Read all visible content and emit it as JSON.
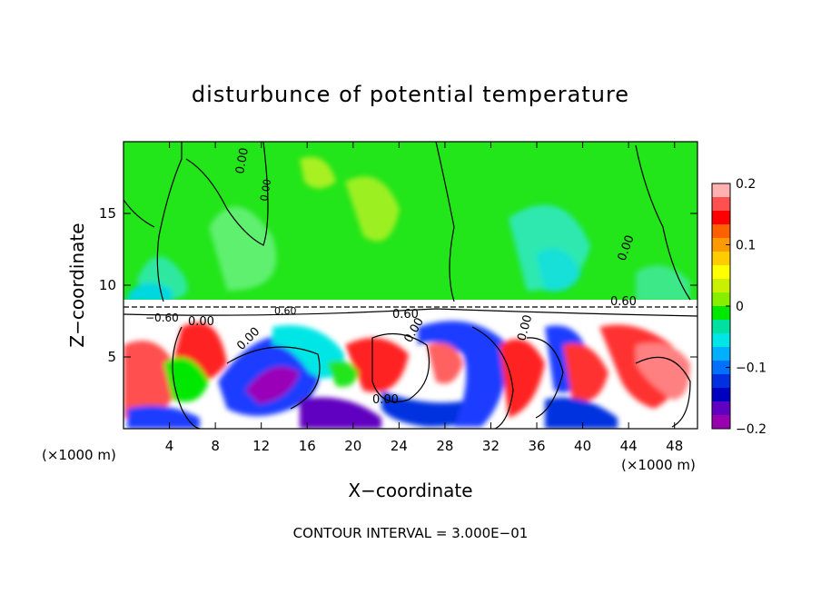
{
  "chart_data": {
    "type": "heatmap",
    "title": "disturbunce of potential temperature",
    "xlabel": "X−coordinate",
    "ylabel": "Z−coordinate",
    "x_unit_label": "(×1000 m)",
    "x_unit_label_right": "(×1000 m)",
    "xlim": [
      0,
      50
    ],
    "ylim": [
      0,
      20
    ],
    "xticks": [
      4,
      8,
      12,
      16,
      20,
      24,
      28,
      32,
      36,
      40,
      44,
      48
    ],
    "yticks": [
      5,
      10,
      15
    ],
    "colorbar": {
      "range": [
        -0.2,
        0.2
      ],
      "ticks": [
        "0.2",
        "0.1",
        "0",
        "−0.1",
        "−0.2"
      ],
      "colors_top_to_bottom": [
        "#ffb0b0",
        "#ff5050",
        "#ff0000",
        "#ff6000",
        "#ff9900",
        "#ffcc00",
        "#ffff00",
        "#c8f000",
        "#88ee00",
        "#00e800",
        "#00e0a0",
        "#00e6e6",
        "#00b0ff",
        "#0070ff",
        "#0030e0",
        "#0000c0",
        "#6000c0",
        "#9900b0"
      ]
    },
    "contour_labels": [
      "0.00",
      "0.00",
      "0.00",
      "0.00",
      "0.00",
      "0.00",
      "0.00",
      "0.00",
      "−0.60",
      "0.60",
      "0.60",
      "0.60"
    ],
    "contour_interval_text": "CONTOUR INTERVAL = 3.000E−01"
  }
}
